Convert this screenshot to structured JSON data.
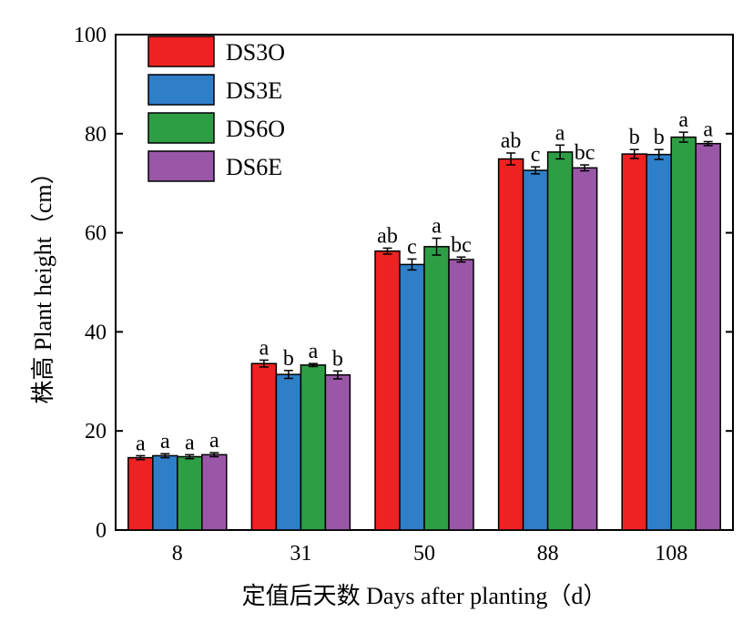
{
  "chart_data": {
    "type": "bar",
    "xlabel": "定值后天数 Days after planting（d）",
    "ylabel": "株高 Plant height（cm）",
    "ylim": [
      0,
      100
    ],
    "yticks": [
      0,
      20,
      40,
      60,
      80,
      100
    ],
    "categories": [
      "8",
      "31",
      "50",
      "88",
      "108"
    ],
    "legend_position": "top-left",
    "series": [
      {
        "name": "DS3O",
        "color": "#ee2222",
        "values": [
          14.6,
          33.6,
          56.3,
          74.9,
          75.9
        ],
        "errors": [
          0.4,
          0.7,
          0.6,
          1.2,
          0.9
        ],
        "significance": [
          "a",
          "a",
          "ab",
          "ab",
          "b"
        ]
      },
      {
        "name": "DS3E",
        "color": "#2f7ec8",
        "values": [
          15.0,
          31.4,
          53.6,
          72.6,
          75.8
        ],
        "errors": [
          0.4,
          0.8,
          1.1,
          0.7,
          1.0
        ],
        "significance": [
          "a",
          "b",
          "c",
          "c",
          "b"
        ]
      },
      {
        "name": "DS6O",
        "color": "#2e9e45",
        "values": [
          14.8,
          33.3,
          57.2,
          76.3,
          79.3
        ],
        "errors": [
          0.4,
          0.3,
          1.7,
          1.4,
          1.0
        ],
        "significance": [
          "a",
          "a",
          "a",
          "a",
          "a"
        ]
      },
      {
        "name": "DS6E",
        "color": "#9a57a8",
        "values": [
          15.2,
          31.3,
          54.6,
          73.1,
          78.0
        ],
        "errors": [
          0.4,
          0.8,
          0.5,
          0.6,
          0.4
        ],
        "significance": [
          "a",
          "b",
          "bc",
          "bc",
          "a"
        ]
      }
    ]
  }
}
